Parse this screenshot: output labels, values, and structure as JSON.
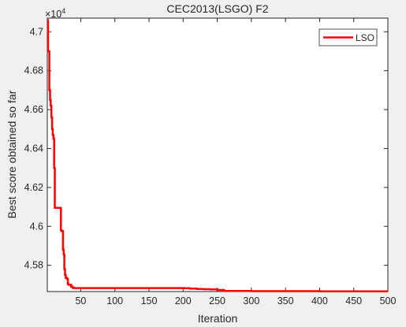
{
  "chart_data": {
    "type": "line",
    "title": "CEC2013(LSGO) F2",
    "xlabel": "Iteration",
    "ylabel": "Best score obtained so far",
    "xlim": [
      1,
      500
    ],
    "ylim": [
      45665,
      47070
    ],
    "y_scale_exponent_label": "×10",
    "y_scale_exponent": "4",
    "x_ticks": [
      50,
      100,
      150,
      200,
      250,
      300,
      350,
      400,
      450,
      500
    ],
    "y_ticks": [
      4.58,
      4.6,
      4.62,
      4.64,
      4.66,
      4.68,
      4.7
    ],
    "y_tick_labels": [
      "4.58",
      "4.6",
      "4.62",
      "4.64",
      "4.66",
      "4.68",
      "4.7"
    ],
    "grid": false,
    "legend": {
      "position": "top-right",
      "entries": [
        "LSO"
      ]
    },
    "series": [
      {
        "name": "LSO",
        "color": "#ff0000",
        "x": [
          1,
          2,
          4,
          5,
          6,
          7,
          8,
          9,
          10,
          11,
          12,
          14,
          16,
          18,
          20,
          21,
          22,
          23,
          24,
          25,
          26,
          27,
          28,
          30,
          31,
          32,
          34,
          36,
          38,
          40,
          80,
          120,
          160,
          200,
          210,
          220,
          230,
          240,
          250,
          260,
          300,
          350,
          400,
          450,
          500
        ],
        "y": [
          47060,
          46900,
          46700,
          46650,
          46620,
          46560,
          46500,
          46470,
          46450,
          46300,
          46095,
          46095,
          46095,
          46095,
          46093,
          45980,
          45975,
          45975,
          45880,
          45855,
          45780,
          45750,
          45735,
          45730,
          45705,
          45700,
          45700,
          45690,
          45685,
          45683,
          45683,
          45683,
          45683,
          45682,
          45680,
          45678,
          45677,
          45676,
          45673,
          45668,
          45667,
          45667,
          45666,
          45666,
          45666
        ]
      }
    ]
  }
}
